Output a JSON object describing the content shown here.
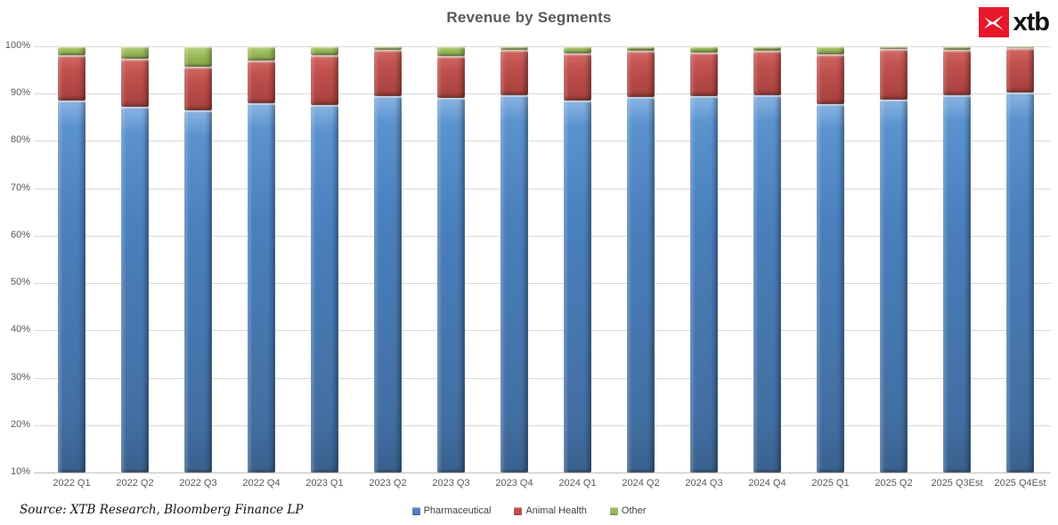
{
  "header": {
    "title": "Revenue by Segments",
    "logo_text": "xtb",
    "logo_color": "#e8182c"
  },
  "chart_data": {
    "type": "bar",
    "stacked": true,
    "title": "Revenue by Segments",
    "xlabel": "",
    "ylabel": "",
    "ylim": [
      10,
      100
    ],
    "grid": true,
    "legend_position": "bottom",
    "y_ticks": [
      "100%",
      "90%",
      "80%",
      "70%",
      "60%",
      "50%",
      "40%",
      "30%",
      "20%",
      "10%"
    ],
    "categories": [
      "2022 Q1",
      "2022 Q2",
      "2022 Q3",
      "2022 Q4",
      "2023 Q1",
      "2023 Q2",
      "2023 Q3",
      "2023 Q4",
      "2024 Q1",
      "2024 Q2",
      "2024 Q3",
      "2024 Q4",
      "2025 Q1",
      "2025 Q2",
      "2025 Q3Est",
      "2025 Q4Est"
    ],
    "series": [
      {
        "name": "Pharmaceutical",
        "color": "#4F81BD",
        "values": [
          88.5,
          87.2,
          86.5,
          87.9,
          87.7,
          89.4,
          89.1,
          89.7,
          88.5,
          89.3,
          89.4,
          89.7,
          87.8,
          88.8,
          89.7,
          90.2
        ]
      },
      {
        "name": "Animal Health",
        "color": "#C0504D",
        "values": [
          9.6,
          10.2,
          9.2,
          9.1,
          10.5,
          9.9,
          8.8,
          9.6,
          10.0,
          9.7,
          9.2,
          9.4,
          10.6,
          10.7,
          9.5,
          9.5
        ]
      },
      {
        "name": "Other",
        "color": "#9BBB59",
        "values": [
          1.9,
          2.6,
          4.3,
          3.0,
          1.8,
          0.7,
          2.1,
          0.7,
          1.5,
          1.0,
          1.4,
          0.9,
          1.6,
          0.5,
          0.8,
          0.3
        ]
      }
    ]
  },
  "footer": {
    "source": "Source: XTB Research, Bloomberg Finance LP",
    "legend": [
      "Pharmaceutical",
      "Animal Health",
      "Other"
    ]
  }
}
